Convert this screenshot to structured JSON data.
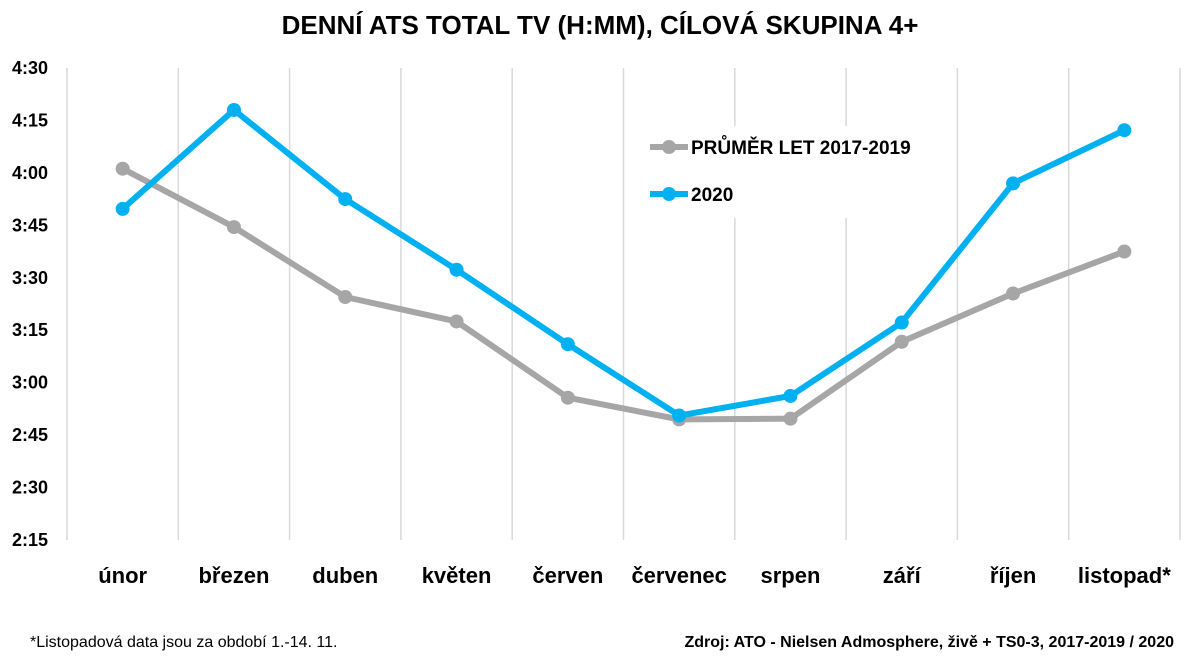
{
  "chart_data": {
    "type": "line",
    "title": "DENNÍ ATS TOTAL TV (H:MM), CÍLOVÁ SKUPINA 4+",
    "categories": [
      "únor",
      "březen",
      "duben",
      "květen",
      "červen",
      "červenec",
      "srpen",
      "září",
      "říjen",
      "listopad*"
    ],
    "y_ticks": [
      "2:15",
      "2:30",
      "2:45",
      "3:00",
      "3:15",
      "3:30",
      "3:45",
      "4:00",
      "4:15",
      "4:30"
    ],
    "y_unit": "minutes",
    "ylim": [
      135,
      270
    ],
    "grid": "vertical",
    "legend_position": "top-right",
    "series": [
      {
        "name": "PRŮMĚR LET 2017-2019",
        "color": "#a6a6a6",
        "values": [
          241.2,
          224.5,
          204.5,
          197.5,
          175.7,
          169.5,
          169.7,
          191.7,
          205.5,
          217.5
        ]
      },
      {
        "name": "2020",
        "color": "#00b0f0",
        "values": [
          229.7,
          258.0,
          232.5,
          212.3,
          191.0,
          170.6,
          176.2,
          197.2,
          237.0,
          252.2
        ]
      }
    ]
  },
  "footnote": "*Listopadová data jsou za období 1.-14. 11.",
  "source": "Zdroj: ATO - Nielsen Admosphere, živě + TS0-3, 2017-2019 / 2020"
}
